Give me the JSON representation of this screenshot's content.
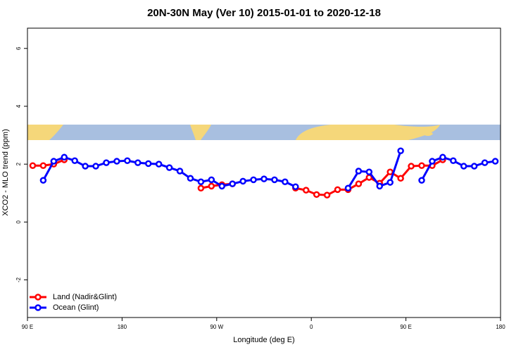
{
  "chart_data": {
    "type": "line",
    "title": "20N-30N May (Ver 10)   2015-01-01 to 2020-12-18",
    "x_label": "Longitude (deg E)",
    "y_label": "XCO2 - MLO trend (ppm)",
    "x": [
      95,
      105,
      115,
      125,
      135,
      145,
      155,
      165,
      175,
      185,
      195,
      205,
      215,
      225,
      235,
      245,
      255,
      265,
      275,
      285,
      295,
      305,
      315,
      325,
      335,
      345,
      355,
      365,
      375,
      385,
      395,
      405,
      415,
      425,
      435,
      445,
      455,
      465,
      475,
      485,
      495,
      505,
      515,
      525,
      535
    ],
    "series": [
      {
        "name": "Land (Nadir&Glint)",
        "color": "#ff0000",
        "values": [
          1.95,
          1.95,
          2.0,
          2.15,
          null,
          null,
          null,
          null,
          null,
          null,
          null,
          null,
          null,
          null,
          null,
          null,
          1.17,
          1.24,
          1.29,
          1.32,
          null,
          null,
          null,
          null,
          null,
          1.17,
          1.1,
          0.95,
          0.93,
          1.12,
          1.12,
          1.32,
          1.54,
          1.34,
          1.73,
          1.51,
          1.93,
          1.95,
          1.95,
          2.15,
          null,
          null,
          null,
          null,
          null
        ]
      },
      {
        "name": "Ocean (Glint)",
        "color": "#0000ff",
        "values": [
          null,
          1.44,
          2.1,
          2.24,
          2.12,
          1.93,
          1.93,
          2.05,
          2.1,
          2.12,
          2.05,
          2.02,
          2.0,
          1.88,
          1.76,
          1.51,
          1.39,
          1.46,
          1.24,
          1.32,
          1.41,
          1.46,
          1.49,
          1.46,
          1.39,
          1.22,
          null,
          null,
          null,
          null,
          1.17,
          1.76,
          1.73,
          1.24,
          1.37,
          2.46,
          null,
          1.44,
          2.1,
          2.24,
          2.12,
          1.93,
          1.93,
          2.05,
          2.1
        ]
      }
    ],
    "xlim": [
      90,
      540
    ],
    "xticks": [
      {
        "value": 90,
        "label": "90 E"
      },
      180,
      {
        "value": 270,
        "label": "90 W"
      },
      {
        "value": 360,
        "label": "0"
      },
      {
        "value": 450,
        "label": "90 E"
      },
      {
        "value": 540,
        "label": "180"
      }
    ],
    "ylim": [
      -3.3,
      6.7
    ],
    "yticks": [
      -2,
      0,
      2,
      4,
      6
    ],
    "legend": "bottom-left",
    "grid": false
  }
}
